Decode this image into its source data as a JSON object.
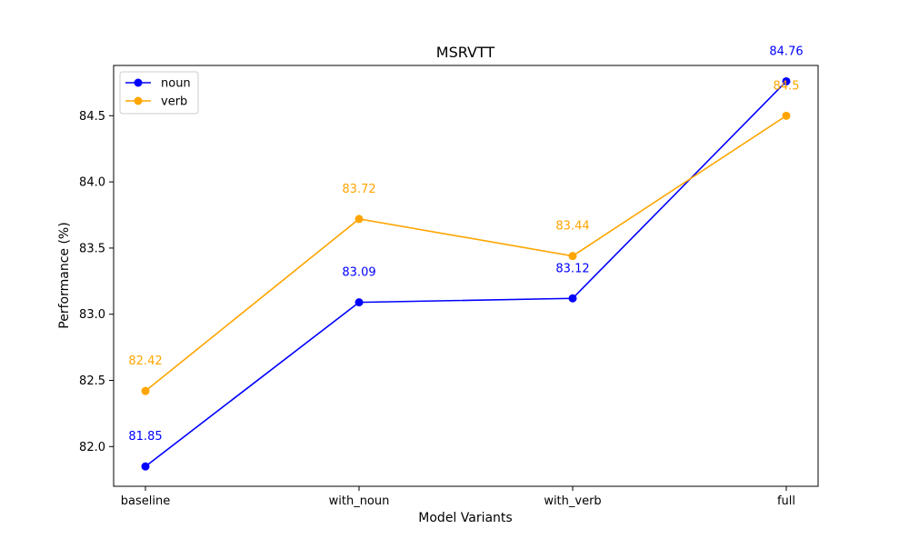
{
  "chart_data": {
    "type": "line",
    "title": "MSRVTT",
    "xlabel": "Model Variants",
    "ylabel": "Performance (%)",
    "categories": [
      "baseline",
      "with_noun",
      "with_verb",
      "full"
    ],
    "ylim": [
      81.7,
      84.88
    ],
    "yticks": [
      "82.0",
      "82.5",
      "83.0",
      "83.5",
      "84.0",
      "84.5"
    ],
    "grid": false,
    "legend_position": "top-left",
    "series": [
      {
        "name": "noun",
        "color": "#0000ff",
        "values": [
          81.85,
          83.09,
          83.12,
          84.76
        ],
        "labels": [
          "81.85",
          "83.09",
          "83.12",
          "84.76"
        ]
      },
      {
        "name": "verb",
        "color": "#ffa500",
        "values": [
          82.42,
          83.72,
          83.44,
          84.5
        ],
        "labels": [
          "82.42",
          "83.72",
          "83.44",
          "84.5"
        ]
      }
    ]
  }
}
